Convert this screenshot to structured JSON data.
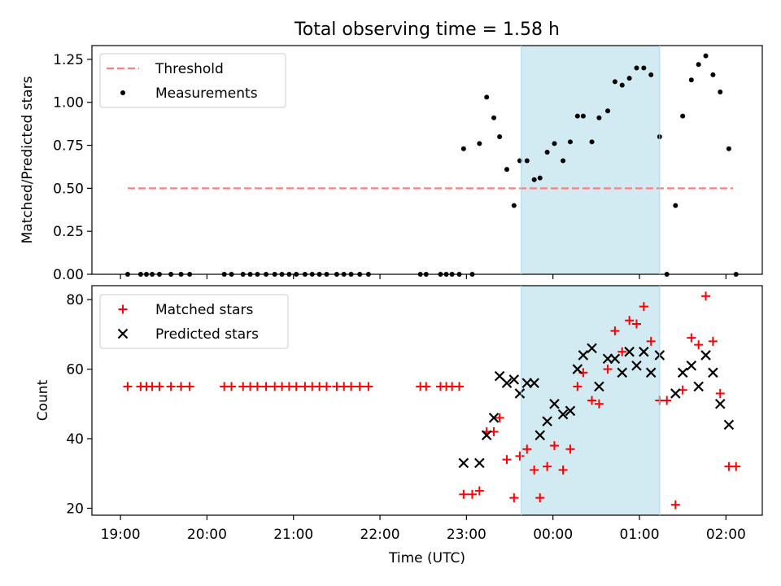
{
  "figure_title": "Total observing time = 1.58 h",
  "colors": {
    "threshold": "#ff7f7f",
    "measurements": "#000000",
    "matched": "#ff0000",
    "predicted": "#000000",
    "highlight": "#add8e6"
  },
  "chart_data": [
    {
      "type": "scatter",
      "title": "",
      "xlabel": "",
      "ylabel": "Matched/Predicted stars",
      "x_unit": "hours since 19:00 UTC",
      "xlim": [
        -0.33,
        7.42
      ],
      "ylim": [
        0,
        1.33
      ],
      "yticks": [
        0,
        0.25,
        0.5,
        0.75,
        1.0,
        1.25
      ],
      "ytick_labels": [
        "0.00",
        "0.25",
        "0.50",
        "0.75",
        "1.00",
        "1.25"
      ],
      "highlight_span": [
        "23:38",
        "01:14"
      ],
      "legend": {
        "position": "top-left",
        "entries": [
          "Threshold",
          "Measurements"
        ]
      },
      "threshold": {
        "name": "Threshold",
        "value": 0.5,
        "x_range": [
          "19:05",
          "02:05"
        ]
      },
      "series": [
        {
          "name": "Measurements",
          "marker": "dot",
          "points": [
            [
              "19:05",
              0
            ],
            [
              "19:14",
              0
            ],
            [
              "19:18",
              0
            ],
            [
              "19:22",
              0
            ],
            [
              "19:27",
              0
            ],
            [
              "19:35",
              0
            ],
            [
              "19:42",
              0
            ],
            [
              "19:48",
              0
            ],
            [
              "20:12",
              0
            ],
            [
              "20:17",
              0
            ],
            [
              "20:25",
              0
            ],
            [
              "20:30",
              0
            ],
            [
              "20:35",
              0
            ],
            [
              "20:41",
              0
            ],
            [
              "20:47",
              0
            ],
            [
              "20:52",
              0
            ],
            [
              "20:57",
              0
            ],
            [
              "21:02",
              0
            ],
            [
              "21:08",
              0
            ],
            [
              "21:13",
              0
            ],
            [
              "21:18",
              0
            ],
            [
              "21:23",
              0
            ],
            [
              "21:30",
              0
            ],
            [
              "21:35",
              0
            ],
            [
              "21:40",
              0
            ],
            [
              "21:46",
              0
            ],
            [
              "21:52",
              0
            ],
            [
              "22:28",
              0
            ],
            [
              "22:32",
              0
            ],
            [
              "22:42",
              0
            ],
            [
              "22:46",
              0
            ],
            [
              "22:50",
              0
            ],
            [
              "22:55",
              0
            ],
            [
              "23:04",
              0
            ],
            [
              "22:58",
              0.73
            ],
            [
              "23:09",
              0.76
            ],
            [
              "23:14",
              1.03
            ],
            [
              "23:19",
              0.91
            ],
            [
              "23:23",
              0.8
            ],
            [
              "23:28",
              0.61
            ],
            [
              "23:33",
              0.4
            ],
            [
              "23:37",
              0.66
            ],
            [
              "23:42",
              0.66
            ],
            [
              "23:47",
              0.55
            ],
            [
              "23:51",
              0.56
            ],
            [
              "23:56",
              0.71
            ],
            [
              "00:01",
              0.76
            ],
            [
              "00:07",
              0.66
            ],
            [
              "00:12",
              0.77
            ],
            [
              "00:17",
              0.92
            ],
            [
              "00:21",
              0.92
            ],
            [
              "00:27",
              0.77
            ],
            [
              "00:32",
              0.91
            ],
            [
              "00:38",
              0.95
            ],
            [
              "00:43",
              1.12
            ],
            [
              "00:48",
              1.1
            ],
            [
              "00:53",
              1.14
            ],
            [
              "00:58",
              1.2
            ],
            [
              "01:03",
              1.2
            ],
            [
              "01:08",
              1.16
            ],
            [
              "01:14",
              0.8
            ],
            [
              "01:19",
              0
            ],
            [
              "01:25",
              0.4
            ],
            [
              "01:30",
              0.92
            ],
            [
              "01:36",
              1.13
            ],
            [
              "01:41",
              1.22
            ],
            [
              "01:46",
              1.27
            ],
            [
              "01:51",
              1.16
            ],
            [
              "01:56",
              1.06
            ],
            [
              "02:02",
              0.73
            ],
            [
              "02:07",
              0
            ]
          ]
        }
      ]
    },
    {
      "type": "scatter",
      "title": "",
      "xlabel": "Time (UTC)",
      "ylabel": "Count",
      "x_unit": "hours since 19:00 UTC",
      "xlim": [
        -0.33,
        7.42
      ],
      "ylim": [
        18,
        84
      ],
      "yticks": [
        20,
        40,
        60,
        80
      ],
      "ytick_labels": [
        "20",
        "40",
        "60",
        "80"
      ],
      "xticks": [
        "19:00",
        "20:00",
        "21:00",
        "22:00",
        "23:00",
        "00:00",
        "01:00",
        "02:00"
      ],
      "highlight_span": [
        "23:38",
        "01:14"
      ],
      "legend": {
        "position": "top-left",
        "entries": [
          "Matched stars",
          "Predicted stars"
        ]
      },
      "series": [
        {
          "name": "Matched stars",
          "marker": "plus",
          "points": [
            [
              "19:05",
              55
            ],
            [
              "19:14",
              55
            ],
            [
              "19:18",
              55
            ],
            [
              "19:22",
              55
            ],
            [
              "19:27",
              55
            ],
            [
              "19:35",
              55
            ],
            [
              "19:42",
              55
            ],
            [
              "19:48",
              55
            ],
            [
              "20:12",
              55
            ],
            [
              "20:17",
              55
            ],
            [
              "20:25",
              55
            ],
            [
              "20:30",
              55
            ],
            [
              "20:35",
              55
            ],
            [
              "20:41",
              55
            ],
            [
              "20:47",
              55
            ],
            [
              "20:52",
              55
            ],
            [
              "20:57",
              55
            ],
            [
              "21:02",
              55
            ],
            [
              "21:08",
              55
            ],
            [
              "21:13",
              55
            ],
            [
              "21:18",
              55
            ],
            [
              "21:23",
              55
            ],
            [
              "21:30",
              55
            ],
            [
              "21:35",
              55
            ],
            [
              "21:40",
              55
            ],
            [
              "21:46",
              55
            ],
            [
              "21:52",
              55
            ],
            [
              "22:28",
              55
            ],
            [
              "22:32",
              55
            ],
            [
              "22:42",
              55
            ],
            [
              "22:46",
              55
            ],
            [
              "22:50",
              55
            ],
            [
              "22:55",
              55
            ],
            [
              "22:58",
              24
            ],
            [
              "23:04",
              24
            ],
            [
              "23:09",
              25
            ],
            [
              "23:14",
              42
            ],
            [
              "23:19",
              42
            ],
            [
              "23:23",
              46
            ],
            [
              "23:28",
              34
            ],
            [
              "23:33",
              23
            ],
            [
              "23:37",
              35
            ],
            [
              "23:42",
              37
            ],
            [
              "23:47",
              31
            ],
            [
              "23:51",
              23
            ],
            [
              "23:56",
              32
            ],
            [
              "00:01",
              38
            ],
            [
              "00:07",
              31
            ],
            [
              "00:12",
              37
            ],
            [
              "00:17",
              55
            ],
            [
              "00:21",
              59
            ],
            [
              "00:27",
              51
            ],
            [
              "00:32",
              50
            ],
            [
              "00:38",
              60
            ],
            [
              "00:43",
              71
            ],
            [
              "00:48",
              65
            ],
            [
              "00:53",
              74
            ],
            [
              "00:58",
              73
            ],
            [
              "01:03",
              78
            ],
            [
              "01:08",
              68
            ],
            [
              "01:14",
              51
            ],
            [
              "01:19",
              51
            ],
            [
              "01:25",
              21
            ],
            [
              "01:30",
              54
            ],
            [
              "01:36",
              69
            ],
            [
              "01:41",
              67
            ],
            [
              "01:46",
              81
            ],
            [
              "01:51",
              68
            ],
            [
              "01:56",
              53
            ],
            [
              "02:02",
              32
            ],
            [
              "02:07",
              32
            ]
          ]
        },
        {
          "name": "Predicted stars",
          "marker": "x",
          "points": [
            [
              "22:58",
              33
            ],
            [
              "23:09",
              33
            ],
            [
              "23:14",
              41
            ],
            [
              "23:19",
              46
            ],
            [
              "23:23",
              58
            ],
            [
              "23:28",
              56
            ],
            [
              "23:33",
              57
            ],
            [
              "23:37",
              53
            ],
            [
              "23:42",
              56
            ],
            [
              "23:47",
              56
            ],
            [
              "23:51",
              41
            ],
            [
              "23:56",
              45
            ],
            [
              "00:01",
              50
            ],
            [
              "00:07",
              47
            ],
            [
              "00:12",
              48
            ],
            [
              "00:17",
              60
            ],
            [
              "00:21",
              64
            ],
            [
              "00:27",
              66
            ],
            [
              "00:32",
              55
            ],
            [
              "00:38",
              63
            ],
            [
              "00:43",
              63
            ],
            [
              "00:48",
              59
            ],
            [
              "00:53",
              65
            ],
            [
              "00:58",
              61
            ],
            [
              "01:03",
              65
            ],
            [
              "01:08",
              59
            ],
            [
              "01:14",
              64
            ],
            [
              "01:25",
              53
            ],
            [
              "01:30",
              59
            ],
            [
              "01:36",
              61
            ],
            [
              "01:41",
              55
            ],
            [
              "01:46",
              64
            ],
            [
              "01:51",
              59
            ],
            [
              "01:56",
              50
            ],
            [
              "02:02",
              44
            ]
          ]
        }
      ]
    }
  ]
}
